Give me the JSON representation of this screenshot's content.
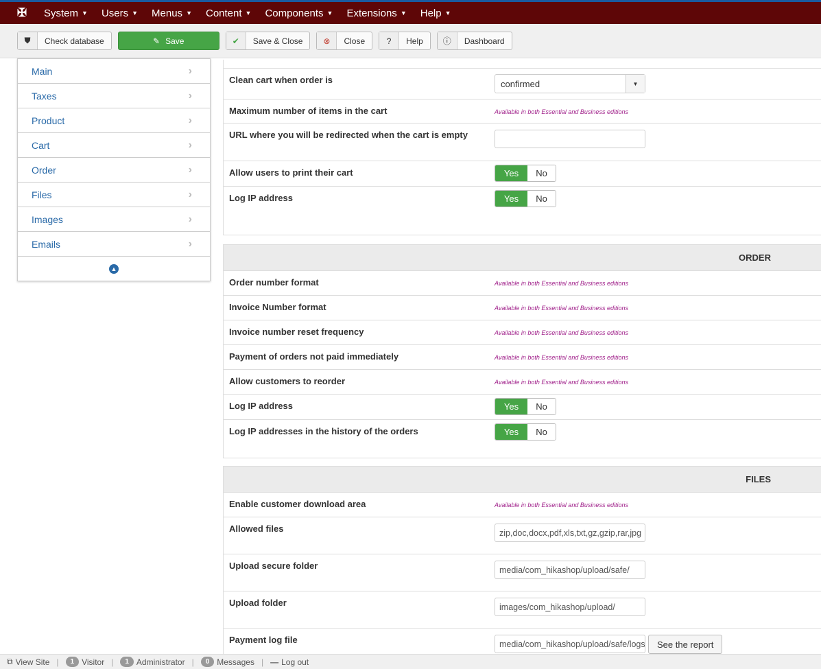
{
  "nav": {
    "items": [
      "System",
      "Users",
      "Menus",
      "Content",
      "Components",
      "Extensions",
      "Help"
    ]
  },
  "toolbar": {
    "check_database": "Check database",
    "save": "Save",
    "save_close": "Save & Close",
    "close": "Close",
    "help": "Help",
    "dashboard": "Dashboard"
  },
  "sidebar": {
    "items": [
      "Main",
      "Taxes",
      "Product",
      "Cart",
      "Order",
      "Files",
      "Images",
      "Emails"
    ]
  },
  "availability_note": "Available in both Essential and Business editions",
  "cart": {
    "clean_cart_label": "Clean cart when order is",
    "clean_cart_value": "confirmed",
    "max_items_label": "Maximum number of items in the cart",
    "url_empty_label": "URL where you will be redirected when the cart is empty",
    "url_empty_value": "",
    "print_label": "Allow users to print their cart",
    "log_ip_label": "Log IP address"
  },
  "toggle": {
    "yes": "Yes",
    "no": "No"
  },
  "order": {
    "title": "ORDER",
    "rows": [
      "Order number format",
      "Invoice Number format",
      "Invoice number reset frequency",
      "Payment of orders not paid immediately",
      "Allow customers to reorder"
    ],
    "log_ip_label": "Log IP address",
    "log_ip_history_label": "Log IP addresses in the history of the orders"
  },
  "files": {
    "title": "FILES",
    "download_area_label": "Enable customer download area",
    "allowed_files_label": "Allowed files",
    "allowed_files_value": "zip,doc,docx,pdf,xls,txt,gz,gzip,rar,jpg",
    "secure_folder_label": "Upload secure folder",
    "secure_folder_value": "media/com_hikashop/upload/safe/",
    "upload_folder_label": "Upload folder",
    "upload_folder_value": "images/com_hikashop/upload/",
    "payment_log_label": "Payment log file",
    "payment_log_value": "media/com_hikashop/upload/safe/logs/",
    "see_report": "See the report"
  },
  "footer": {
    "view_site": "View Site",
    "visitor_count": "1",
    "visitor": "Visitor",
    "admin_count": "1",
    "admin": "Administrator",
    "messages_count": "0",
    "messages": "Messages",
    "logout": "Log out"
  }
}
